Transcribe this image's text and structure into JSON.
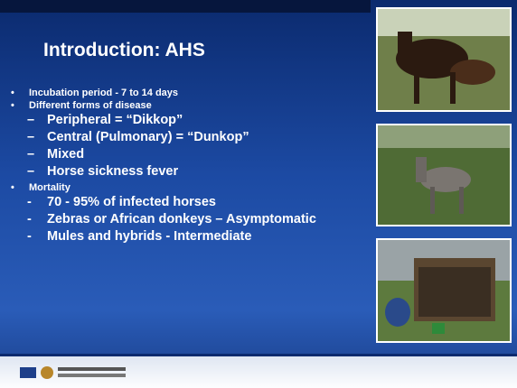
{
  "title": "Introduction: AHS",
  "bullets": [
    {
      "marker": "•",
      "text": "Incubation period - 7 to 14 days",
      "sub": []
    },
    {
      "marker": "•",
      "text": "Different forms of disease",
      "sub": [
        {
          "marker": "–",
          "text": "Peripheral = “Dikkop”"
        },
        {
          "marker": "–",
          "text": "Central (Pulmonary) = “Dunkop”"
        },
        {
          "marker": "–",
          "text": "Mixed"
        },
        {
          "marker": "–",
          "text": "Horse sickness fever"
        }
      ]
    },
    {
      "marker": "•",
      "text": "Mortality",
      "sub": [
        {
          "marker": "-",
          "text": "70 - 95% of infected horses"
        },
        {
          "marker": "-",
          "text": "Zebras or African donkeys – Asymptomatic"
        },
        {
          "marker": "-",
          "text": "Mules and hybrids - Intermediate"
        }
      ]
    }
  ]
}
